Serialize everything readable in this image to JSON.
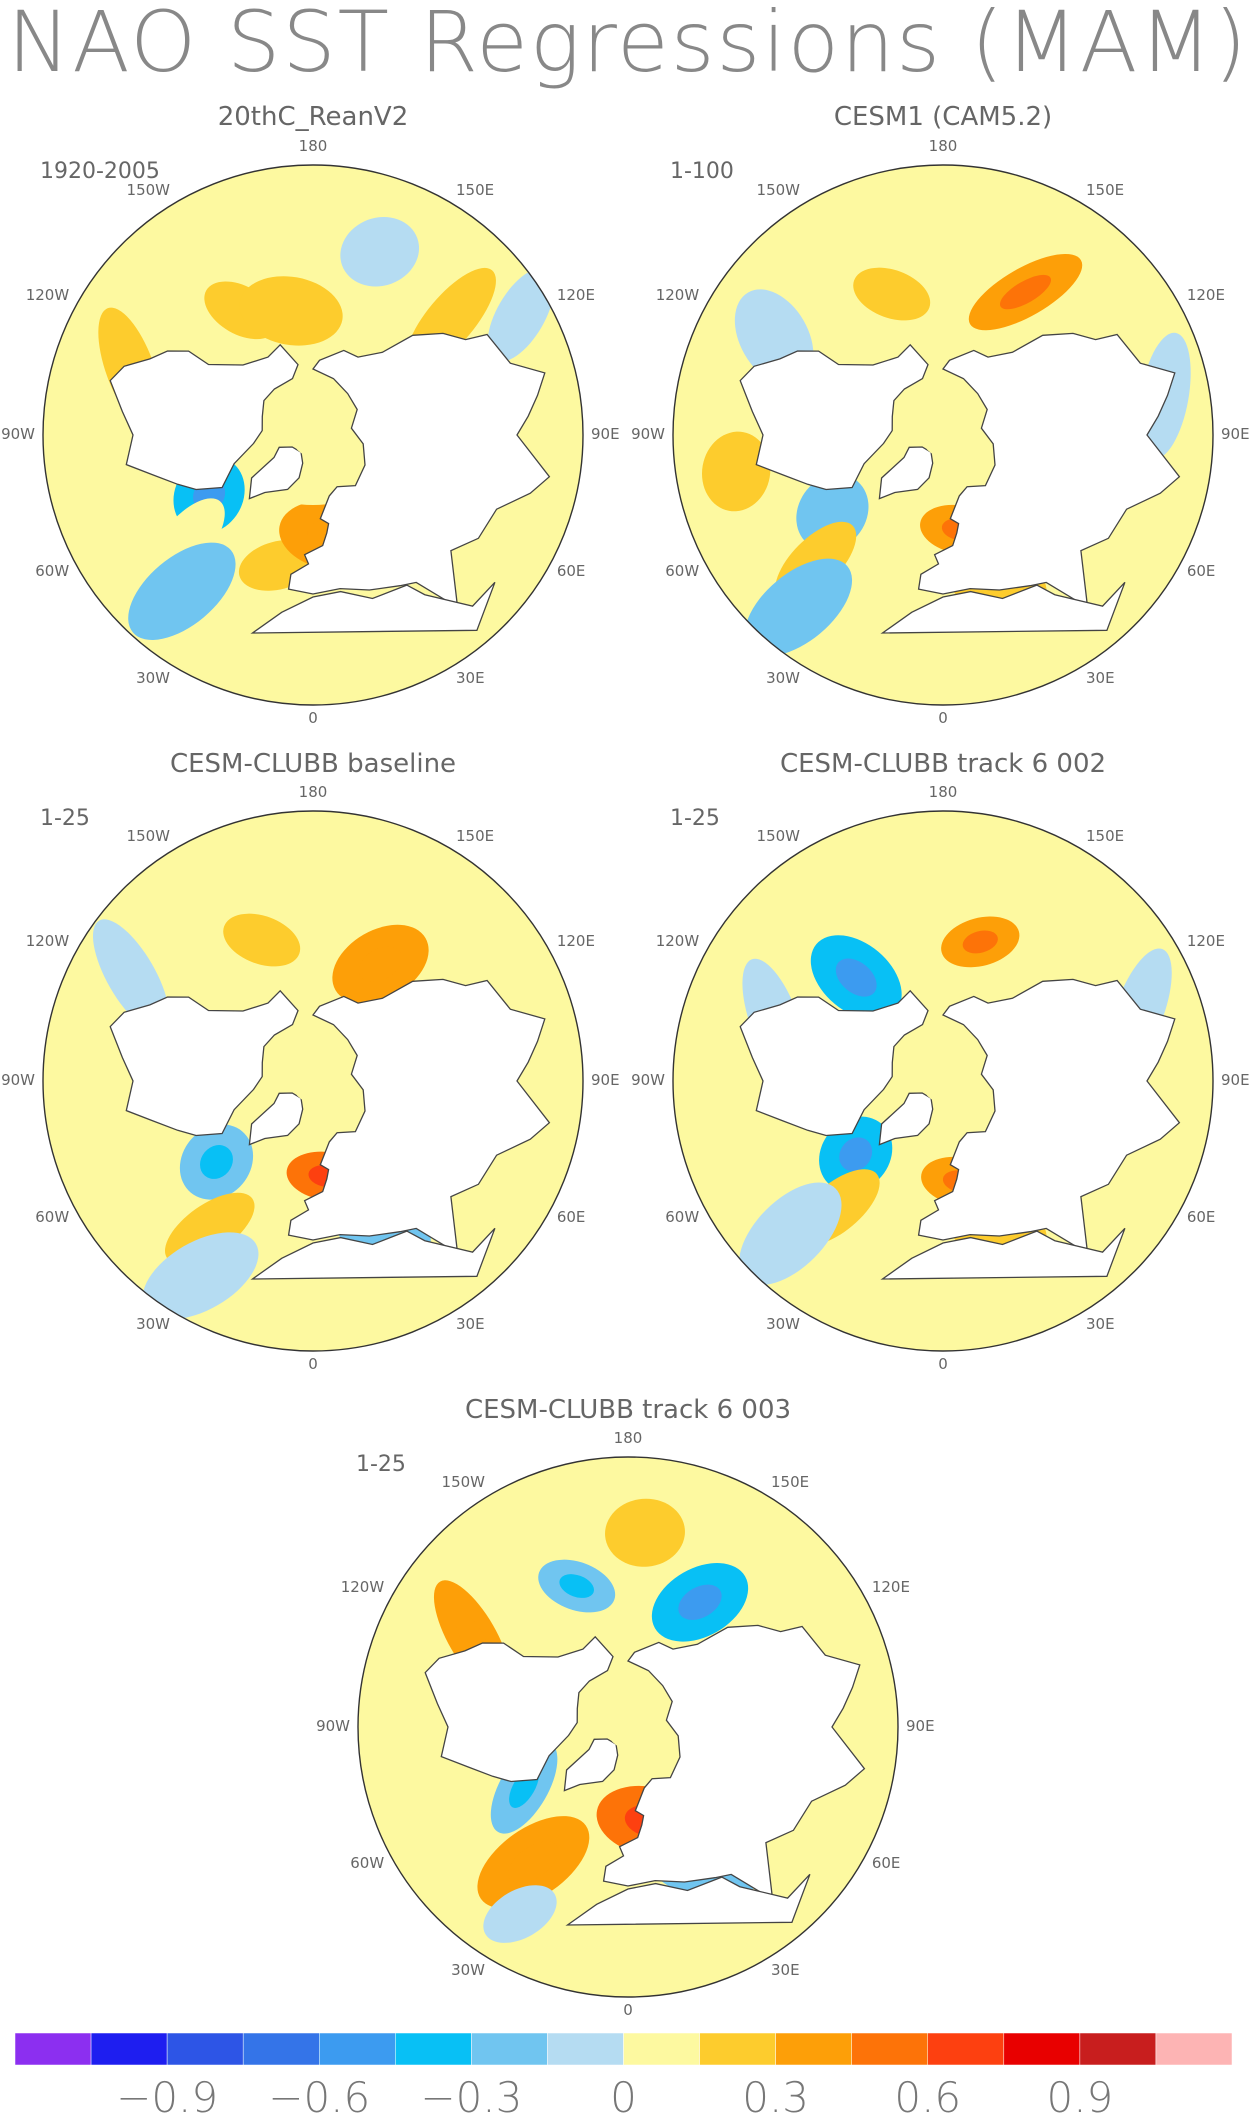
{
  "title": "NAO SST Regressions (MAM)",
  "colors": {
    "land": "#ffffff",
    "coast": "#444444",
    "border": "#333333",
    "text": "#666666"
  },
  "panels": [
    {
      "title": "20thC_ReanV2",
      "period": "1920-2005",
      "field": [
        {
          "lon": -150,
          "lat": 42,
          "value": 0.2
        },
        {
          "lon": -170,
          "lat": 48,
          "value": 0.25
        },
        {
          "lon": -110,
          "lat": 25,
          "value": 0.15
        },
        {
          "lon": -60,
          "lat": 50,
          "value": -0.35
        },
        {
          "lon": -50,
          "lat": 35,
          "value": 0.1
        },
        {
          "lon": -40,
          "lat": 22,
          "value": -0.2
        },
        {
          "lon": -15,
          "lat": 45,
          "value": 0.15
        },
        {
          "lon": 10,
          "lat": 56,
          "value": 0.3
        },
        {
          "lon": 130,
          "lat": 30,
          "value": 0.2
        },
        {
          "lon": 160,
          "lat": 25,
          "value": -0.1
        },
        {
          "lon": 120,
          "lat": 10,
          "value": -0.1
        },
        {
          "lon": 0,
          "lat": 78,
          "value": 0.05
        }
      ]
    },
    {
      "title": "CESM1 (CAM5.2)",
      "period": "1-100",
      "field": [
        {
          "lon": -160,
          "lat": 40,
          "value": 0.25
        },
        {
          "lon": -120,
          "lat": 25,
          "value": -0.15
        },
        {
          "lon": 150,
          "lat": 35,
          "value": 0.35
        },
        {
          "lon": -55,
          "lat": 45,
          "value": -0.25
        },
        {
          "lon": -45,
          "lat": 30,
          "value": 0.25
        },
        {
          "lon": -40,
          "lat": 15,
          "value": -0.2
        },
        {
          "lon": 10,
          "lat": 58,
          "value": 0.4
        },
        {
          "lon": 20,
          "lat": 38,
          "value": 0.2
        },
        {
          "lon": 100,
          "lat": 15,
          "value": -0.1
        },
        {
          "lon": -80,
          "lat": 20,
          "value": 0.15
        }
      ]
    },
    {
      "title": "CESM-CLUBB baseline",
      "period": "1-25",
      "field": [
        {
          "lon": -160,
          "lat": 40,
          "value": 0.15
        },
        {
          "lon": 150,
          "lat": 45,
          "value": 0.3
        },
        {
          "lon": -120,
          "lat": 20,
          "value": -0.1
        },
        {
          "lon": -50,
          "lat": 48,
          "value": -0.3
        },
        {
          "lon": -35,
          "lat": 30,
          "value": 0.15
        },
        {
          "lon": -30,
          "lat": 15,
          "value": -0.15
        },
        {
          "lon": 8,
          "lat": 58,
          "value": 0.45
        },
        {
          "lon": 25,
          "lat": 36,
          "value": -0.2
        },
        {
          "lon": 0,
          "lat": 78,
          "value": 0.1
        }
      ]
    },
    {
      "title": "CESM-CLUBB track 6 002",
      "period": "1-25",
      "field": [
        {
          "lon": 165,
          "lat": 42,
          "value": 0.35
        },
        {
          "lon": -140,
          "lat": 45,
          "value": -0.35
        },
        {
          "lon": -110,
          "lat": 30,
          "value": -0.15
        },
        {
          "lon": -50,
          "lat": 52,
          "value": -0.4
        },
        {
          "lon": -40,
          "lat": 35,
          "value": 0.25
        },
        {
          "lon": -45,
          "lat": 18,
          "value": -0.15
        },
        {
          "lon": 10,
          "lat": 56,
          "value": 0.35
        },
        {
          "lon": 20,
          "lat": 38,
          "value": 0.25
        },
        {
          "lon": 110,
          "lat": 20,
          "value": -0.1
        }
      ]
    },
    {
      "title": "CESM-CLUBB track 6 003",
      "period": "1-25",
      "field": [
        {
          "lon": -160,
          "lat": 40,
          "value": -0.3
        },
        {
          "lon": 150,
          "lat": 42,
          "value": -0.4
        },
        {
          "lon": -120,
          "lat": 30,
          "value": 0.3
        },
        {
          "lon": 175,
          "lat": 25,
          "value": 0.15
        },
        {
          "lon": -60,
          "lat": 50,
          "value": -0.3
        },
        {
          "lon": -35,
          "lat": 35,
          "value": 0.3
        },
        {
          "lon": -30,
          "lat": 18,
          "value": -0.15
        },
        {
          "lon": 12,
          "lat": 58,
          "value": 0.45
        },
        {
          "lon": 25,
          "lat": 36,
          "value": -0.2
        },
        {
          "lon": 100,
          "lat": 15,
          "value": 0.1
        }
      ]
    }
  ],
  "lon_labels": {
    "top": "180",
    "bottom": "0",
    "upper_left": "150W",
    "upper_right": "150E",
    "mid_upper_left": "120W",
    "mid_upper_right": "120E",
    "left": "90W",
    "right": "90E",
    "mid_lower_left": "60W",
    "mid_lower_right": "60E",
    "lower_left": "30W",
    "lower_right": "30E"
  },
  "colorbar": {
    "levels": [
      -1.05,
      -0.9,
      -0.75,
      -0.6,
      -0.45,
      -0.3,
      -0.15,
      0,
      0.15,
      0.3,
      0.45,
      0.6,
      0.75,
      0.9,
      1.05
    ],
    "colors": [
      "#8c2ff0",
      "#1e1ef0",
      "#2d55e6",
      "#3474e8",
      "#3c9bf0",
      "#08c0f5",
      "#70c5f0",
      "#b5dcf2",
      "#fdf9a0",
      "#fdcc2d",
      "#fd9f08",
      "#fd7308",
      "#fd4010",
      "#e80000",
      "#c81e1e",
      "#fdb4b4"
    ],
    "labels": [
      "−0.9",
      "−0.6",
      "−0.3",
      "0",
      "0.3",
      "0.6",
      "0.9"
    ]
  }
}
